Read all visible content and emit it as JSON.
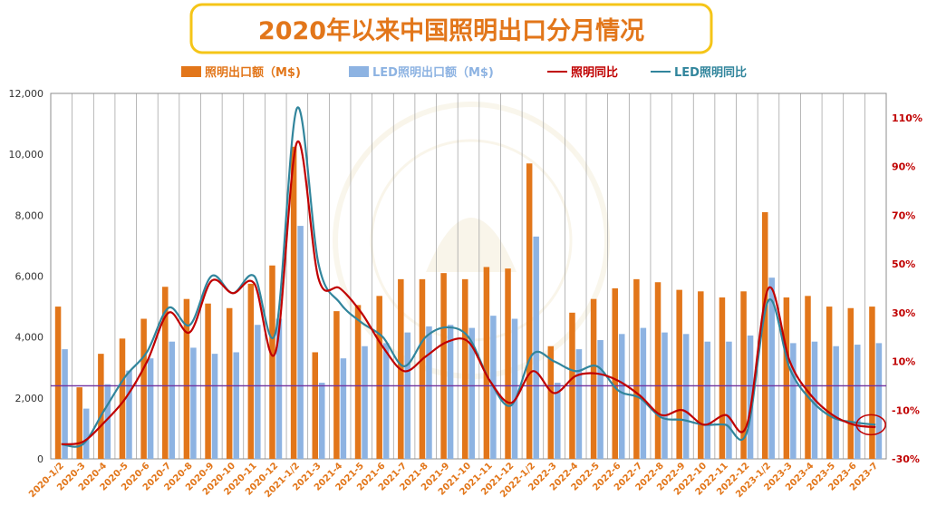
{
  "chart_data": {
    "type": "bar",
    "title": "2020年以来中国照明出口分月情况",
    "categories": [
      "2020-1/2",
      "2020-3",
      "2020-4",
      "2020-5",
      "2020-6",
      "2020-7",
      "2020-8",
      "2020-9",
      "2020-10",
      "2020-11",
      "2020-12",
      "2021-1/2",
      "2021-3",
      "2021-4",
      "2021-5",
      "2021-6",
      "2021-7",
      "2021-8",
      "2021-9",
      "2021-10",
      "2021-11",
      "2021-12",
      "2022-1/2",
      "2022-3",
      "2022-4",
      "2022-5",
      "2022-6",
      "2022-7",
      "2022-8",
      "2022-9",
      "2022-10",
      "2022-11",
      "2022-12",
      "2023-1/2",
      "2023-3",
      "2023-4",
      "2023-5",
      "2023-6",
      "2023-7"
    ],
    "series": [
      {
        "name": "照明出口额（M$)",
        "type": "bar",
        "axis": "left",
        "color": "#E2761A",
        "values": [
          5000,
          2350,
          3450,
          3950,
          4600,
          5650,
          5250,
          5100,
          4950,
          5750,
          6350,
          10250,
          3500,
          4850,
          5050,
          5350,
          5900,
          5900,
          6100,
          5900,
          6300,
          6250,
          9700,
          3700,
          4800,
          5250,
          5600,
          5900,
          5800,
          5550,
          5500,
          5300,
          5500,
          8100,
          5300,
          5350,
          5000,
          4950,
          5000
        ]
      },
      {
        "name": "LED照明出口额（M$)",
        "type": "bar",
        "axis": "left",
        "color": "#8DB3E2",
        "values": [
          3600,
          1650,
          2450,
          2900,
          3300,
          3850,
          3650,
          3450,
          3500,
          4400,
          4600,
          7650,
          2500,
          3300,
          3700,
          3800,
          4150,
          4350,
          4400,
          4300,
          4700,
          4600,
          7300,
          2500,
          3600,
          3900,
          4100,
          4300,
          4150,
          4100,
          3850,
          3850,
          4050,
          5950,
          3800,
          3850,
          3700,
          3750,
          3800
        ]
      },
      {
        "name": "照明同比",
        "type": "line",
        "axis": "right",
        "color": "#C00000",
        "values": [
          -24,
          -23,
          -15,
          -5,
          10,
          30,
          22,
          43,
          38,
          42,
          14,
          100,
          44,
          40,
          30,
          16,
          6,
          12,
          18,
          18,
          2,
          -7,
          6,
          -3,
          4,
          5,
          2,
          -4,
          -12,
          -10,
          -16,
          -12,
          -16,
          40,
          10,
          -4,
          -12,
          -16,
          -17
        ]
      },
      {
        "name": "LED照明同比",
        "type": "line",
        "axis": "right",
        "color": "#31859C",
        "values": [
          -24,
          -24,
          -10,
          4,
          14,
          32,
          25,
          45,
          38,
          45,
          22,
          114,
          50,
          34,
          26,
          20,
          8,
          20,
          24,
          20,
          2,
          -8,
          13,
          10,
          6,
          8,
          -2,
          -5,
          -13,
          -14,
          -16,
          -16,
          -19,
          35,
          7,
          -6,
          -13,
          -15,
          -16
        ]
      }
    ],
    "y_left": {
      "min": 0,
      "max": 12000,
      "ticks": [
        0,
        2000,
        4000,
        6000,
        8000,
        10000,
        12000
      ],
      "tick_labels": [
        "0",
        "2,000",
        "4,000",
        "6,000",
        "8,000",
        "10,000",
        "12,000"
      ]
    },
    "y_right": {
      "min": -30,
      "max": 120,
      "ticks": [
        -30,
        -10,
        10,
        30,
        50,
        70,
        90,
        110
      ],
      "tick_labels": [
        "-30%",
        "-10%",
        "10%",
        "30%",
        "50%",
        "70%",
        "90%",
        "110%"
      ]
    },
    "reference_line": {
      "axis": "right",
      "value": 0,
      "color": "#7030A0"
    },
    "grid": "vertical",
    "legend_position": "top",
    "watermark": "广东半导体照明研究院"
  }
}
